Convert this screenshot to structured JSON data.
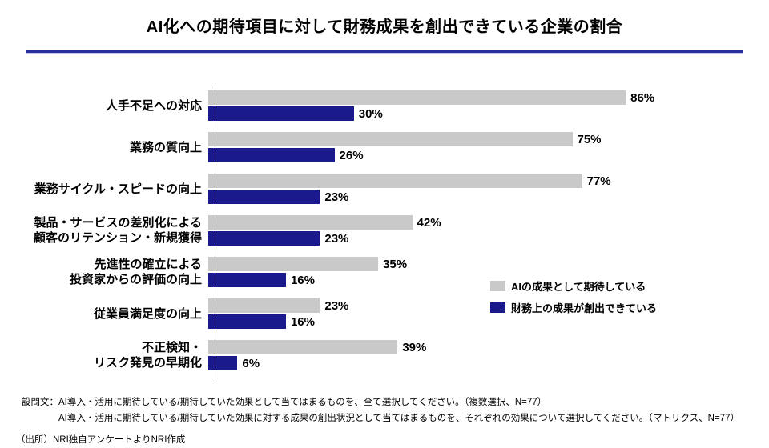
{
  "page": {
    "title": "AI化への期待項目に対して財務成果を創出できている企業の割合",
    "accent_color": "#2A2F9F",
    "background": "#FFFFFF"
  },
  "chart_data": {
    "type": "bar",
    "orientation": "horizontal",
    "title": "AI化への期待項目に対して財務成果を創出できている企業の割合",
    "categories": [
      "人手不足への対応",
      "業務の質向上",
      "業務サイクル・スピードの向上",
      "製品・サービスの差別化による\n顧客のリテンション・新規獲得",
      "先進性の確立による\n投資家からの評価の向上",
      "従業員満足度の向上",
      "不正検知・\nリスク発見の早期化"
    ],
    "series": [
      {
        "name": "AIの成果として期待している",
        "color": "#C9C9C9",
        "values": [
          86,
          75,
          77,
          42,
          35,
          23,
          39
        ]
      },
      {
        "name": "財務上の成果が創出できている",
        "color": "#1A1A8C",
        "values": [
          30,
          26,
          23,
          23,
          16,
          16,
          6
        ]
      }
    ],
    "value_suffix": "%",
    "xlim": [
      0,
      100
    ],
    "grid": false,
    "legend_position": "center-right",
    "axis_color": "#7F7F7F"
  },
  "footnotes": {
    "q_prefix": "設問文：",
    "line1": "AI導入・活用に期待している/期待していた効果として当てはまるものを、全て選択してください。（複数選択、N=77）",
    "line2": "AI導入・活用に期待している/期待していた効果に対する成果の創出状況として当てはまるものを、それぞれの効果について選択してください。（マトリクス、N=77）",
    "source": "（出所）NRI独自アンケートよりNRI作成"
  }
}
